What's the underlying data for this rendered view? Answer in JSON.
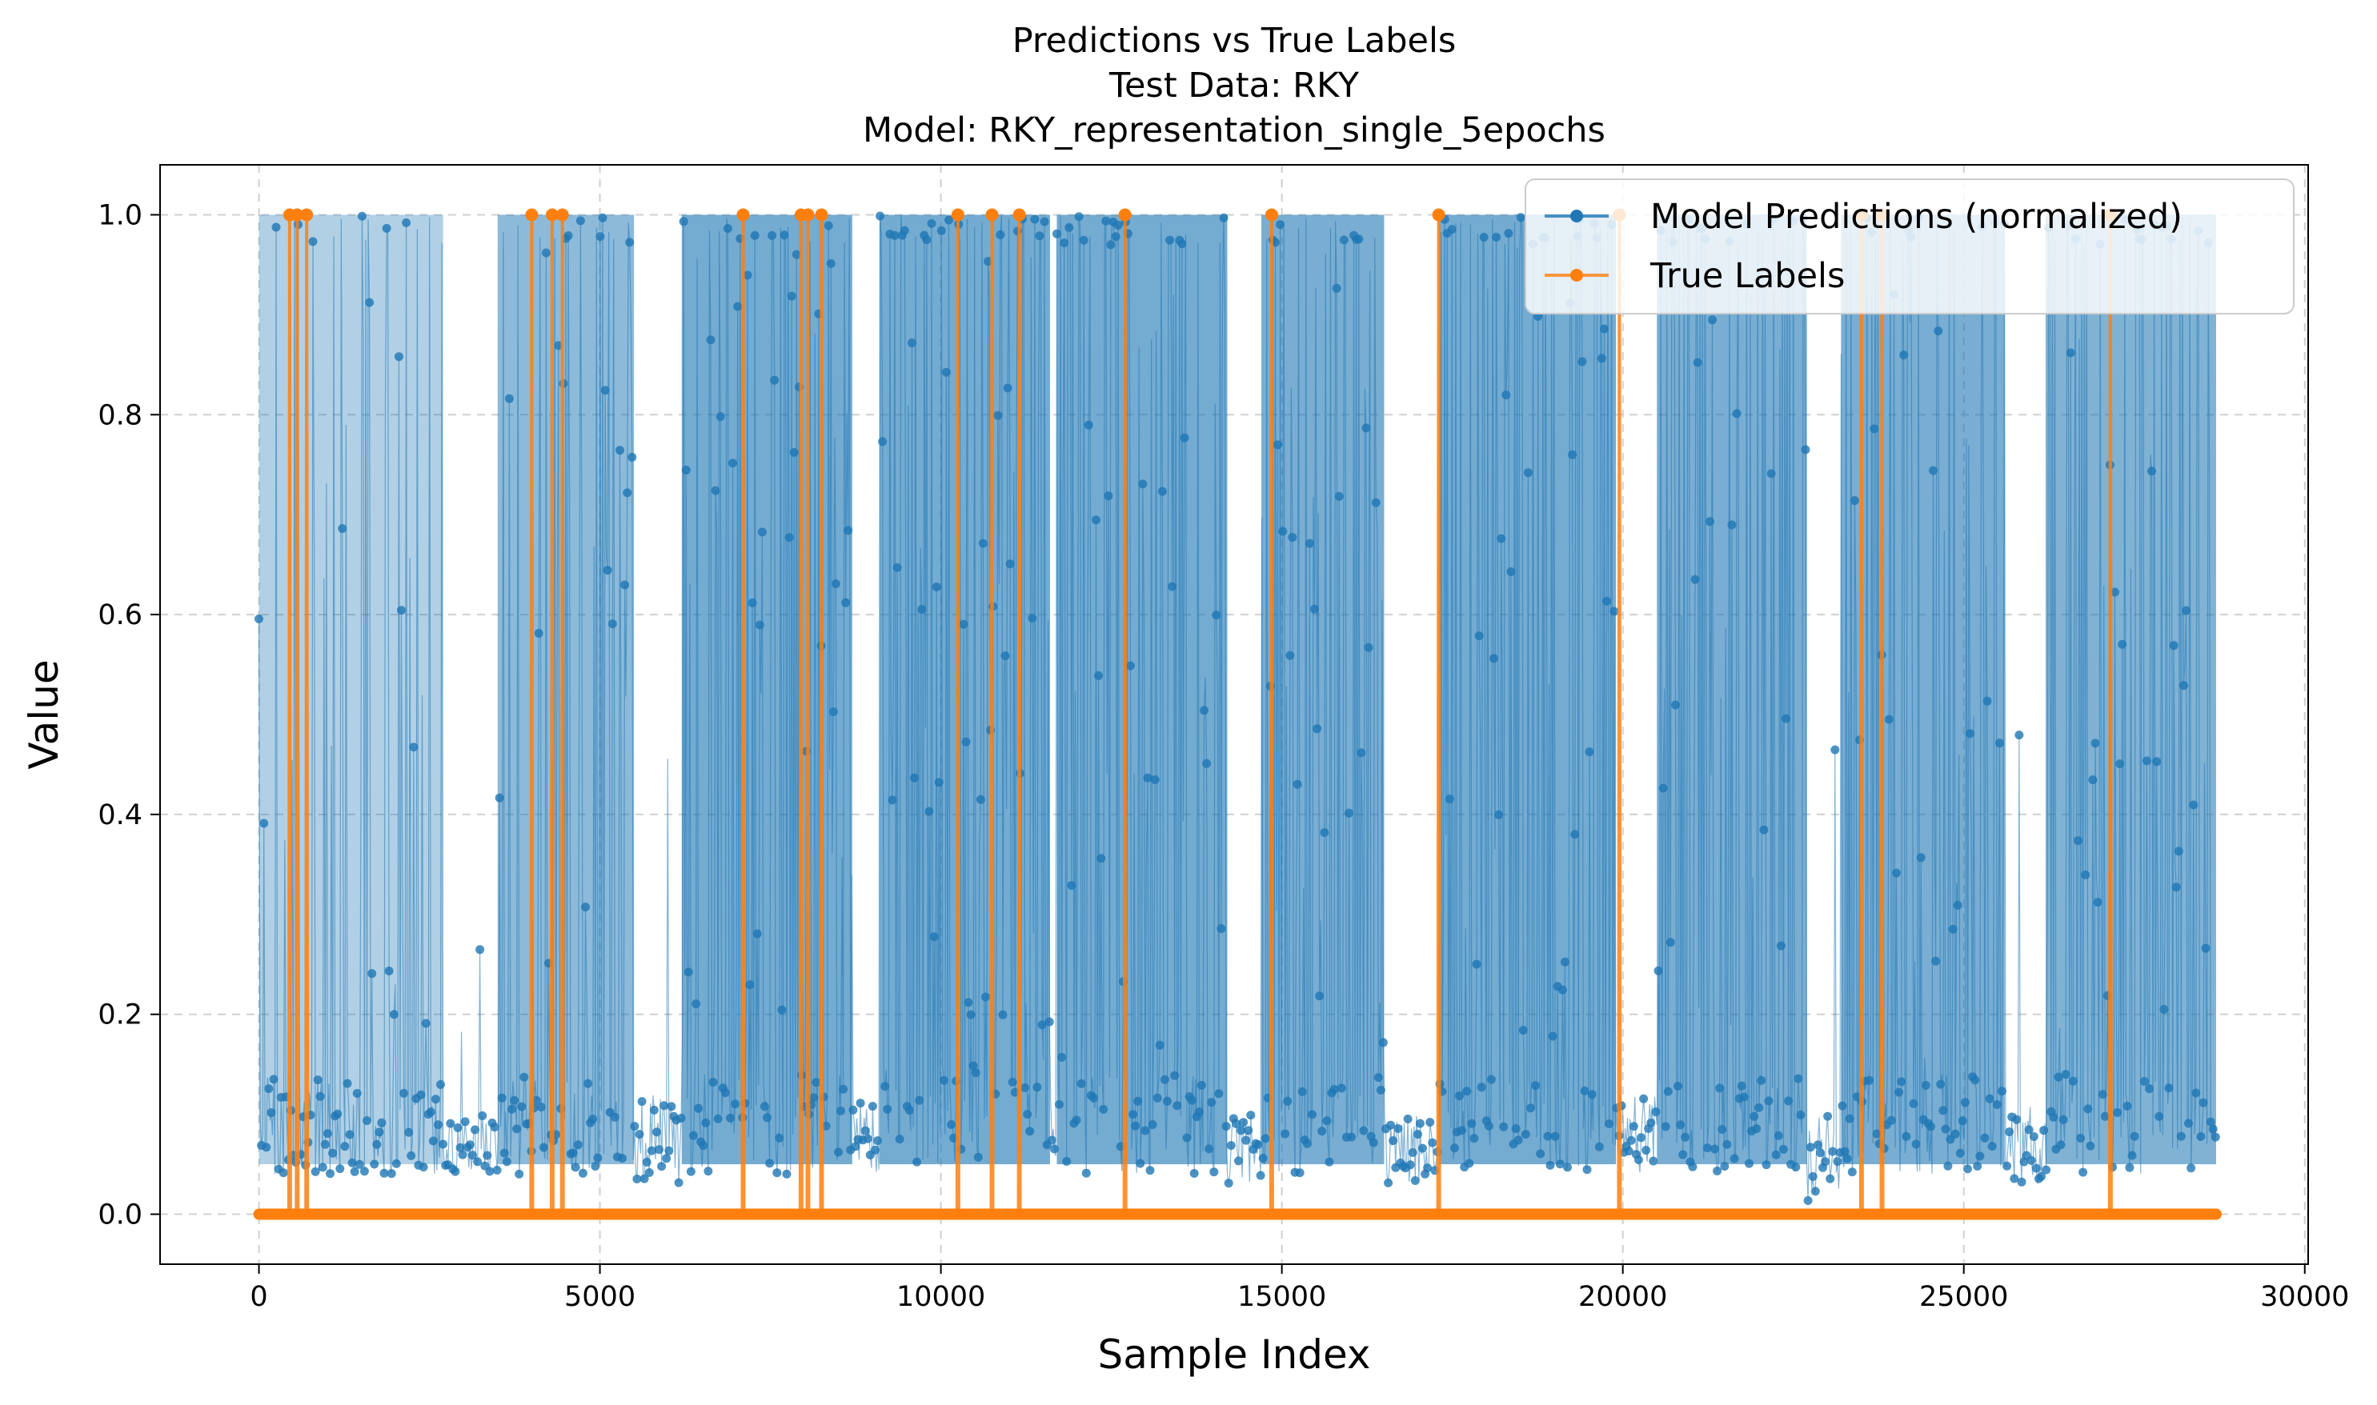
{
  "chart_data": {
    "type": "line",
    "title_lines": [
      "Predictions vs True Labels",
      "Test Data: RKY",
      "Model: RKY_representation_single_5epochs"
    ],
    "xlabel": "Sample Index",
    "ylabel": "Value",
    "xlim": [
      -1450,
      30050
    ],
    "ylim": [
      -0.05,
      1.05
    ],
    "x_ticks": [
      0,
      5000,
      10000,
      15000,
      20000,
      25000,
      30000
    ],
    "y_ticks": [
      0.0,
      0.2,
      0.4,
      0.6,
      0.8,
      1.0
    ],
    "x_tick_labels": [
      "0",
      "5000",
      "10000",
      "15000",
      "20000",
      "25000",
      "30000"
    ],
    "y_tick_labels": [
      "0.0",
      "0.2",
      "0.4",
      "0.6",
      "0.8",
      "1.0"
    ],
    "grid": true,
    "legend_placement": "top-right",
    "sample_count": 28700,
    "series": [
      {
        "name": "Model Predictions (normalized)",
        "color": "#1f77b4",
        "marker": "circle",
        "baseline_segments": [
          {
            "x": [
              0,
              2700
            ],
            "y": [
              0.04,
              0.14
            ],
            "dense": true
          },
          {
            "x": [
              2700,
              3500
            ],
            "y": [
              0.04,
              0.1
            ],
            "dense": false
          },
          {
            "x": [
              3500,
              5500
            ],
            "y": [
              0.04,
              0.14
            ],
            "dense": true
          },
          {
            "x": [
              5500,
              6200
            ],
            "y": [
              0.03,
              0.12
            ],
            "dense": false
          },
          {
            "x": [
              6200,
              8700
            ],
            "y": [
              0.04,
              0.14
            ],
            "dense": true
          },
          {
            "x": [
              8700,
              9100
            ],
            "y": [
              0.04,
              0.12
            ],
            "dense": false
          },
          {
            "x": [
              9100,
              11600
            ],
            "y": [
              0.05,
              0.15
            ],
            "dense": true
          },
          {
            "x": [
              11600,
              11700
            ],
            "y": [
              0.03,
              0.12
            ],
            "dense": false
          },
          {
            "x": [
              11700,
              14200
            ],
            "y": [
              0.04,
              0.14
            ],
            "dense": true
          },
          {
            "x": [
              14200,
              14700
            ],
            "y": [
              0.03,
              0.1
            ],
            "dense": false
          },
          {
            "x": [
              14700,
              16500
            ],
            "y": [
              0.04,
              0.14
            ],
            "dense": true
          },
          {
            "x": [
              16500,
              17300
            ],
            "y": [
              0.03,
              0.1
            ],
            "dense": false
          },
          {
            "x": [
              17300,
              19900
            ],
            "y": [
              0.04,
              0.14
            ],
            "dense": true
          },
          {
            "x": [
              19900,
              20500
            ],
            "y": [
              0.04,
              0.12
            ],
            "dense": false
          },
          {
            "x": [
              20500,
              22700
            ],
            "y": [
              0.04,
              0.14
            ],
            "dense": true
          },
          {
            "x": [
              22700,
              23200
            ],
            "y": [
              0.01,
              0.1
            ],
            "dense": false
          },
          {
            "x": [
              23200,
              25600
            ],
            "y": [
              0.04,
              0.14
            ],
            "dense": true
          },
          {
            "x": [
              25600,
              26200
            ],
            "y": [
              0.03,
              0.11
            ],
            "dense": false
          },
          {
            "x": [
              26200,
              28700
            ],
            "y": [
              0.04,
              0.14
            ],
            "dense": true
          }
        ],
        "high_activity_bands": [
          {
            "x": [
              0,
              2700
            ],
            "density": 0.45
          },
          {
            "x": [
              3500,
              5500
            ],
            "density": 0.75
          },
          {
            "x": [
              6200,
              8700
            ],
            "density": 0.95
          },
          {
            "x": [
              9100,
              11600
            ],
            "density": 0.95
          },
          {
            "x": [
              11700,
              14200
            ],
            "density": 0.95
          },
          {
            "x": [
              14700,
              16500
            ],
            "density": 0.9
          },
          {
            "x": [
              17300,
              19900
            ],
            "density": 0.95
          },
          {
            "x": [
              20500,
              22700
            ],
            "density": 0.9
          },
          {
            "x": [
              23200,
              25600
            ],
            "density": 0.9
          },
          {
            "x": [
              26200,
              28700
            ],
            "density": 0.85
          }
        ]
      },
      {
        "name": "True Labels",
        "color": "#ff7f0e",
        "marker": "circle",
        "baseline": 0.0,
        "positive_x": [
          450,
          560,
          700,
          4000,
          4300,
          4450,
          7100,
          7950,
          8050,
          8250,
          10250,
          10750,
          11150,
          12700,
          14850,
          17300,
          19950,
          23500,
          23800,
          27150
        ]
      }
    ]
  }
}
